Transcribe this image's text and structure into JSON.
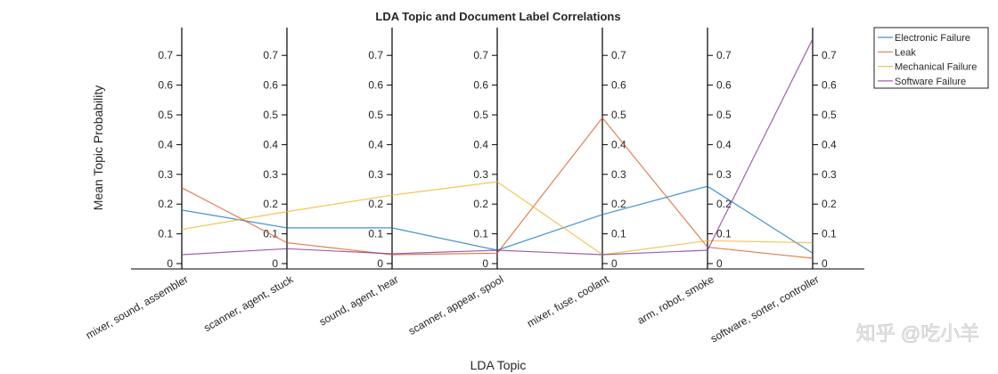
{
  "chart_data": {
    "type": "line",
    "subtype": "parallel-coordinates",
    "title": "LDA Topic and Document Label Correlations",
    "xlabel": "LDA Topic",
    "ylabel": "Mean Topic Probability",
    "categories": [
      "mixer, sound, assembler",
      "scanner, agent, stuck",
      "sound, agent, hear",
      "scanner, appear, spool",
      "mixer, fuse, coolant",
      "arm, robot, smoke",
      "software, sorter, controller"
    ],
    "ylim": [
      0,
      0.79
    ],
    "yticks": [
      "0",
      "0.1",
      "0.2",
      "0.3",
      "0.4",
      "0.5",
      "0.6",
      "0.7"
    ],
    "grid": false,
    "legend_position": "top-right outside",
    "series": [
      {
        "name": "Electronic Failure",
        "color": "#0072BD",
        "values": [
          0.18,
          0.12,
          0.12,
          0.045,
          0.165,
          0.26,
          0.035
        ]
      },
      {
        "name": "Leak",
        "color": "#D95319",
        "values": [
          0.255,
          0.07,
          0.03,
          0.035,
          0.49,
          0.055,
          0.018
        ]
      },
      {
        "name": "Mechanical Failure",
        "color": "#EDB120",
        "values": [
          0.115,
          0.175,
          0.23,
          0.275,
          0.03,
          0.077,
          0.07
        ]
      },
      {
        "name": "Software Failure",
        "color": "#7E2F8E",
        "values": [
          0.03,
          0.05,
          0.033,
          0.045,
          0.03,
          0.045,
          0.755
        ]
      }
    ]
  },
  "watermark": "知乎 @吃小羊"
}
